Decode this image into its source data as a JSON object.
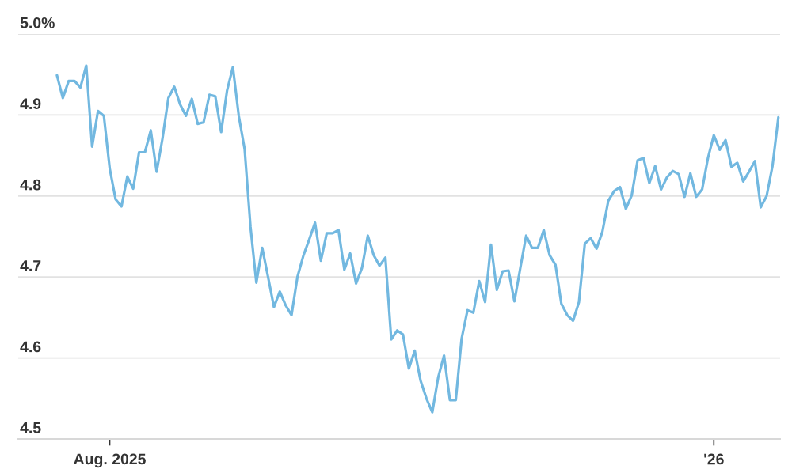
{
  "chart_data": {
    "type": "line",
    "color": "#72b8e0",
    "categories": [
      null,
      null,
      null,
      null,
      null,
      null,
      null,
      null,
      null,
      "Aug. 2025",
      null,
      null,
      null,
      null,
      null,
      null,
      null,
      null,
      null,
      null,
      null,
      null,
      null,
      null,
      null,
      null,
      null,
      null,
      null,
      null,
      null,
      null,
      null,
      null,
      null,
      null,
      null,
      null,
      null,
      null,
      null,
      null,
      null,
      null,
      null,
      null,
      null,
      null,
      null,
      null,
      null,
      null,
      null,
      null,
      null,
      null,
      null,
      null,
      null,
      null,
      null,
      null,
      null,
      null,
      null,
      null,
      null,
      null,
      null,
      null,
      null,
      null,
      null,
      null,
      null,
      null,
      null,
      null,
      null,
      null,
      null,
      null,
      null,
      null,
      null,
      null,
      null,
      null,
      null,
      null,
      null,
      null,
      null,
      null,
      null,
      null,
      null,
      null,
      null,
      null,
      null,
      null,
      null,
      null,
      null,
      null,
      null,
      null,
      null,
      null,
      null,
      null,
      "'26",
      null,
      null,
      null,
      null,
      null,
      null,
      null,
      null,
      null,
      null,
      null
    ],
    "values": [
      4.949,
      4.921,
      4.942,
      4.942,
      4.934,
      4.961,
      4.861,
      4.905,
      4.899,
      4.834,
      4.796,
      4.787,
      4.824,
      4.809,
      4.854,
      4.854,
      4.881,
      4.83,
      4.871,
      4.921,
      4.935,
      4.913,
      4.899,
      4.92,
      4.889,
      4.891,
      4.925,
      4.923,
      4.879,
      4.93,
      4.959,
      4.899,
      4.858,
      4.762,
      4.693,
      4.736,
      4.7,
      4.663,
      4.682,
      4.665,
      4.653,
      4.7,
      4.726,
      4.746,
      4.767,
      4.72,
      4.754,
      4.754,
      4.758,
      4.709,
      4.729,
      4.692,
      4.711,
      4.751,
      4.727,
      4.714,
      4.724,
      4.623,
      4.634,
      4.629,
      4.587,
      4.609,
      4.572,
      4.55,
      4.533,
      4.576,
      4.603,
      4.548,
      4.548,
      4.624,
      4.659,
      4.656,
      4.695,
      4.669,
      4.74,
      4.684,
      4.707,
      4.708,
      4.67,
      4.711,
      4.751,
      4.736,
      4.736,
      4.758,
      4.727,
      4.715,
      4.667,
      4.653,
      4.646,
      4.669,
      4.741,
      4.748,
      4.735,
      4.756,
      4.794,
      4.806,
      4.811,
      4.784,
      4.801,
      4.844,
      4.847,
      4.816,
      4.837,
      4.808,
      4.823,
      4.831,
      4.827,
      4.799,
      4.828,
      4.799,
      4.808,
      4.847,
      4.875,
      4.857,
      4.869,
      4.836,
      4.841,
      4.818,
      4.83,
      4.843,
      4.786,
      4.8,
      4.837,
      4.897
    ],
    "ylim": [
      4.5,
      5.0
    ],
    "yticks": [
      4.5,
      4.6,
      4.7,
      4.8,
      4.9,
      {
        "value": 5.0,
        "label": "5.0%"
      }
    ],
    "grid": "y"
  }
}
